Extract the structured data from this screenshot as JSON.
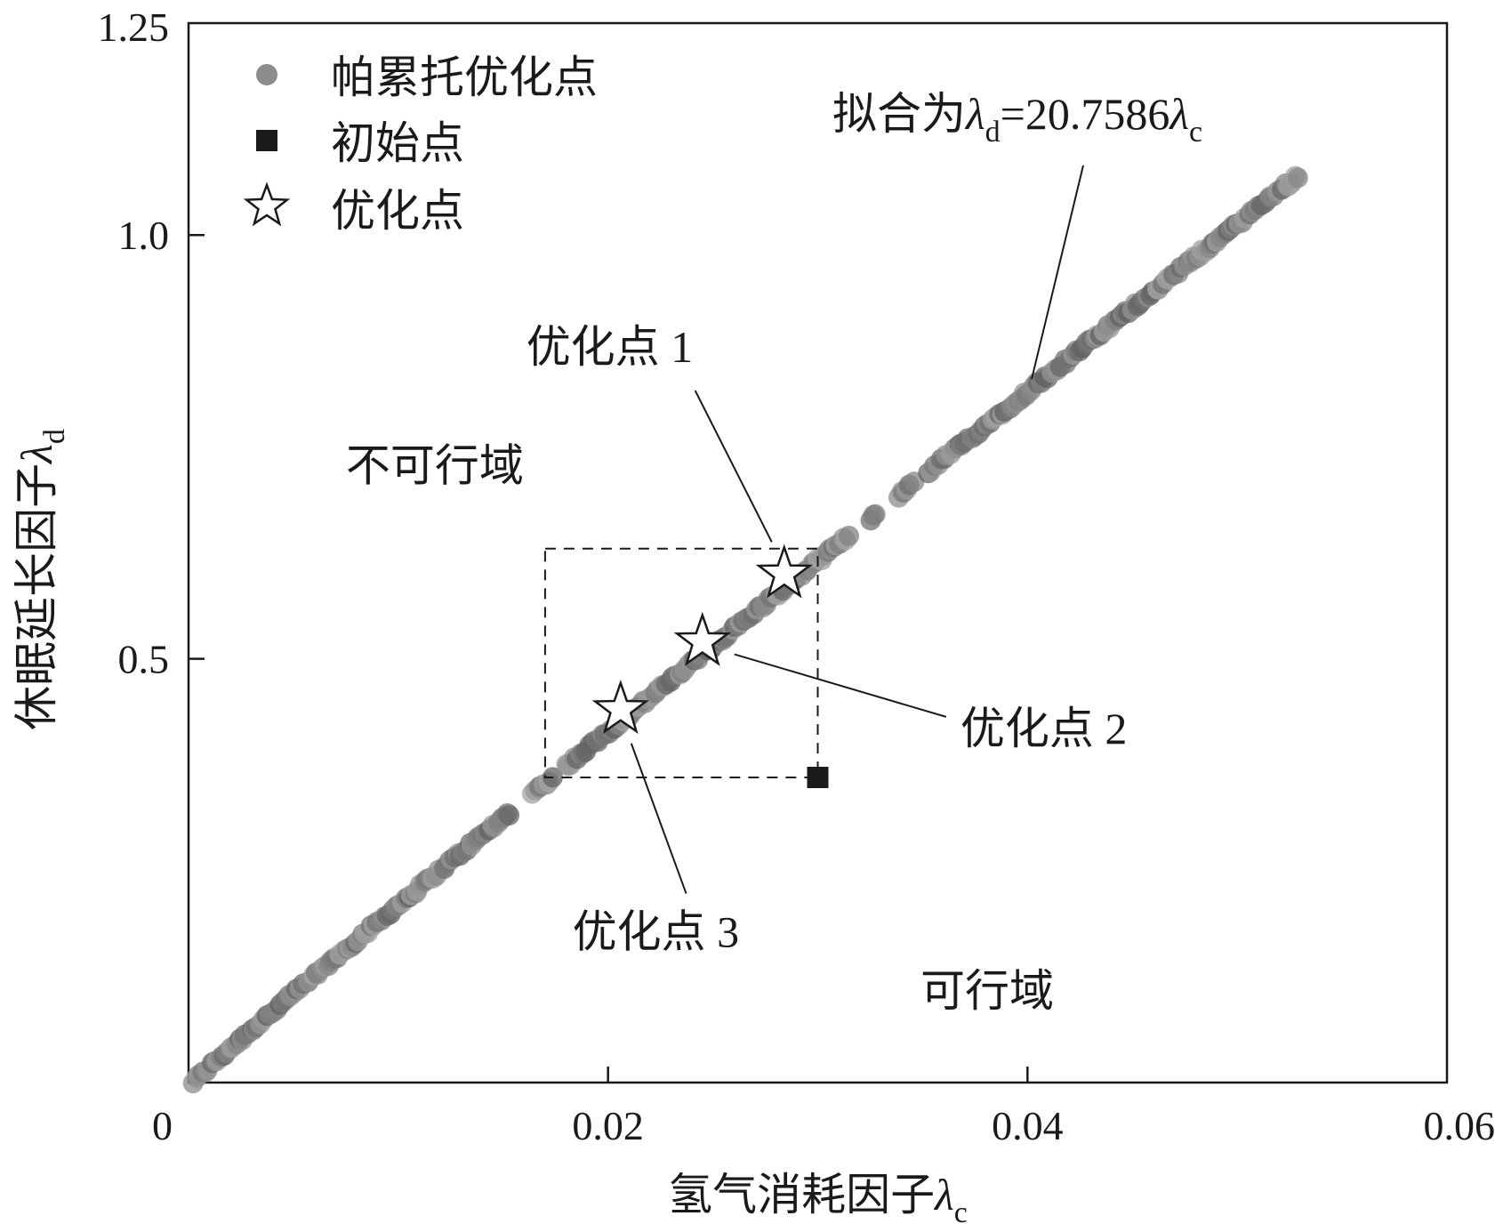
{
  "chart_data": {
    "type": "scatter",
    "x_axis": {
      "label_prefix": "氢气消耗因子",
      "label_symbol": "λ",
      "label_sub": "c",
      "lim": [
        0,
        0.06
      ],
      "ticks": [
        0,
        0.02,
        0.04,
        0.06
      ],
      "tick_labels": [
        "0",
        "0.02",
        "0.04",
        "0.06"
      ]
    },
    "y_axis": {
      "label_prefix": "休眠延长因子",
      "label_symbol": "λ",
      "label_sub": "d",
      "lim": [
        0,
        1.25
      ],
      "ticks": [
        0.5,
        1.0,
        1.25
      ],
      "tick_labels": [
        "0.5",
        "1.0",
        "1.25"
      ]
    },
    "legend": {
      "position": "top-left",
      "entries": [
        {
          "label": "帕累托优化点",
          "marker": "circle",
          "color": "#8c8c8c"
        },
        {
          "label": "初始点",
          "marker": "square",
          "color": "#1a1a1a"
        },
        {
          "label": "优化点",
          "marker": "star",
          "color": "#ffffff"
        }
      ]
    },
    "pareto": {
      "name": "帕累托优化点",
      "x_range": [
        0.0002,
        0.0529
      ],
      "y_range": [
        0.0,
        1.07
      ],
      "gap_x_ranges": [
        [
          0.0153,
          0.0163
        ],
        [
          0.0175,
          0.018
        ],
        [
          0.0315,
          0.0325
        ],
        [
          0.0328,
          0.0338
        ],
        [
          0.0346,
          0.0352
        ]
      ]
    },
    "initial_point": {
      "x": 0.03,
      "y": 0.36
    },
    "optimal_points": [
      {
        "name": "优化点 1",
        "x": 0.0284,
        "y": 0.6
      },
      {
        "name": "优化点 2",
        "x": 0.0245,
        "y": 0.52
      },
      {
        "name": "优化点 3",
        "x": 0.0206,
        "y": 0.44
      }
    ],
    "dashed_box": {
      "x": [
        0.017,
        0.03
      ],
      "y": [
        0.36,
        0.63
      ]
    },
    "fit_annotation": {
      "prefix": "拟合为",
      "lhs_symbol": "λ",
      "lhs_sub": "d",
      "equals": "=20.7586",
      "rhs_symbol": "λ",
      "rhs_sub": "c",
      "arrow_to": {
        "x": 0.0402,
        "y": 0.83
      }
    },
    "regions": [
      {
        "label": "不可行域",
        "x": 0.0075,
        "y": 0.71
      },
      {
        "label": "可行域",
        "x": 0.0349,
        "y": 0.09
      }
    ],
    "point_labels": [
      {
        "label": "优化点",
        "num": "1",
        "target": 0,
        "x": 0.0161,
        "y": 0.85
      },
      {
        "label": "优化点",
        "num": "2",
        "target": 1,
        "x": 0.0368,
        "y": 0.4
      },
      {
        "label": "优化点",
        "num": "3",
        "target": 2,
        "x": 0.0183,
        "y": 0.16
      }
    ],
    "grid": false
  }
}
